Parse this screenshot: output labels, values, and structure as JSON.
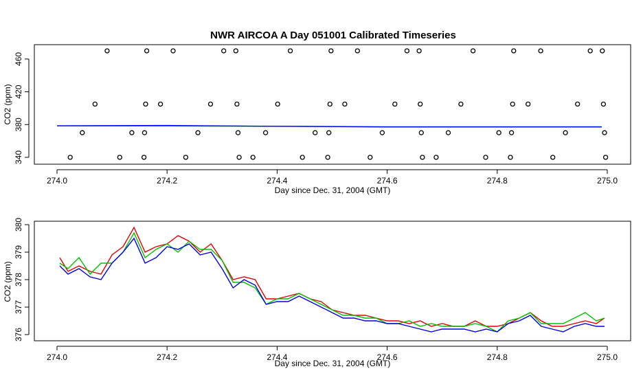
{
  "chart_data": [
    {
      "type": "scatter",
      "title": "NWR AIRCOA A  Day 051001  Calibrated Timeseries",
      "xlabel": "Day since Dec. 31, 2004 (GMT)",
      "ylabel": "CO2 (ppm)",
      "xlim": [
        274.0,
        275.0
      ],
      "ylim": [
        340,
        470
      ],
      "xticks": [
        "274.0",
        "274.2",
        "274.4",
        "274.6",
        "274.8",
        "275.0"
      ],
      "yticks": [
        "340",
        "380",
        "420",
        "460"
      ],
      "points": [
        [
          274.024,
          340
        ],
        [
          274.046,
          370
        ],
        [
          274.069,
          405
        ],
        [
          274.091,
          470
        ],
        [
          274.114,
          340
        ],
        [
          274.136,
          370
        ],
        [
          274.158,
          340
        ],
        [
          274.159,
          370
        ],
        [
          274.161,
          405
        ],
        [
          274.163,
          470
        ],
        [
          274.188,
          405
        ],
        [
          274.211,
          470
        ],
        [
          274.234,
          340
        ],
        [
          274.256,
          370
        ],
        [
          274.279,
          405
        ],
        [
          274.303,
          470
        ],
        [
          274.325,
          470
        ],
        [
          274.327,
          405
        ],
        [
          274.329,
          370
        ],
        [
          274.331,
          340
        ],
        [
          274.356,
          340
        ],
        [
          274.379,
          370
        ],
        [
          274.401,
          405
        ],
        [
          274.424,
          470
        ],
        [
          274.446,
          340
        ],
        [
          274.469,
          370
        ],
        [
          274.492,
          340
        ],
        [
          274.494,
          370
        ],
        [
          274.496,
          405
        ],
        [
          274.498,
          470
        ],
        [
          274.523,
          405
        ],
        [
          274.546,
          470
        ],
        [
          274.569,
          340
        ],
        [
          274.591,
          370
        ],
        [
          274.614,
          405
        ],
        [
          274.636,
          470
        ],
        [
          274.658,
          470
        ],
        [
          274.66,
          405
        ],
        [
          274.662,
          370
        ],
        [
          274.664,
          340
        ],
        [
          274.689,
          340
        ],
        [
          274.711,
          370
        ],
        [
          274.734,
          405
        ],
        [
          274.756,
          470
        ],
        [
          274.779,
          340
        ],
        [
          274.803,
          370
        ],
        [
          274.824,
          340
        ],
        [
          274.826,
          370
        ],
        [
          274.828,
          405
        ],
        [
          274.83,
          470
        ],
        [
          274.856,
          405
        ],
        [
          274.879,
          470
        ],
        [
          274.901,
          340
        ],
        [
          274.924,
          370
        ],
        [
          274.946,
          405
        ],
        [
          274.969,
          470
        ],
        [
          274.991,
          470
        ],
        [
          274.993,
          405
        ],
        [
          274.995,
          370
        ],
        [
          274.997,
          340
        ]
      ],
      "series": [
        {
          "color": "#00c000",
          "x": [
            274.0,
            274.4,
            274.6,
            274.99
          ],
          "values": [
            378.4,
            378.0,
            377.3,
            377.3
          ]
        },
        {
          "color": "#0000ff",
          "x": [
            274.0,
            274.2,
            274.4,
            274.6,
            274.99
          ],
          "values": [
            378.5,
            378.9,
            377.9,
            377.1,
            377.1
          ]
        }
      ]
    },
    {
      "type": "line",
      "xlabel": "Day since Dec. 31, 2004 (GMT)",
      "ylabel": "CO2 (ppm)",
      "xlim": [
        274.0,
        275.0
      ],
      "ylim": [
        376,
        380
      ],
      "xticks": [
        "274.0",
        "274.2",
        "274.4",
        "274.6",
        "274.8",
        "275.0"
      ],
      "yticks": [
        "376",
        "377",
        "378",
        "379",
        "380"
      ],
      "series": [
        {
          "color": "#e00000",
          "x": [
            274.005,
            274.02,
            274.04,
            274.06,
            274.08,
            274.1,
            274.12,
            274.14,
            274.16,
            274.18,
            274.2,
            274.22,
            274.24,
            274.26,
            274.28,
            274.3,
            274.32,
            274.34,
            274.36,
            274.38,
            274.4,
            274.42,
            274.44,
            274.46,
            274.48,
            274.5,
            274.52,
            274.54,
            274.56,
            274.58,
            274.6,
            274.62,
            274.64,
            274.66,
            274.68,
            274.7,
            274.72,
            274.74,
            274.76,
            274.78,
            274.8,
            274.82,
            274.84,
            274.86,
            274.88,
            274.9,
            274.92,
            274.94,
            274.96,
            274.98,
            274.995
          ],
          "values": [
            378.8,
            378.3,
            378.5,
            378.3,
            378.2,
            378.9,
            379.2,
            379.9,
            379.0,
            379.2,
            379.3,
            379.6,
            379.4,
            379.0,
            379.3,
            378.7,
            378.0,
            378.1,
            378.0,
            377.3,
            377.3,
            377.4,
            377.5,
            377.3,
            377.2,
            376.9,
            376.8,
            376.7,
            376.7,
            376.6,
            376.5,
            376.5,
            376.4,
            376.5,
            376.3,
            376.4,
            376.3,
            376.3,
            376.5,
            376.3,
            376.3,
            376.4,
            376.6,
            376.8,
            376.5,
            376.3,
            376.3,
            376.4,
            376.5,
            376.4,
            376.6
          ]
        },
        {
          "color": "#00c000",
          "x": [
            274.005,
            274.02,
            274.04,
            274.06,
            274.08,
            274.1,
            274.12,
            274.14,
            274.16,
            274.18,
            274.2,
            274.22,
            274.24,
            274.26,
            274.28,
            274.3,
            274.32,
            274.34,
            274.36,
            274.38,
            274.4,
            274.42,
            274.44,
            274.46,
            274.48,
            274.5,
            274.52,
            274.54,
            274.56,
            274.58,
            274.6,
            274.62,
            274.64,
            274.66,
            274.68,
            274.7,
            274.72,
            274.74,
            274.76,
            274.78,
            274.8,
            274.82,
            274.84,
            274.86,
            274.88,
            274.9,
            274.92,
            274.94,
            274.96,
            274.98,
            274.995
          ],
          "values": [
            378.6,
            378.4,
            378.8,
            378.2,
            378.6,
            378.6,
            379.0,
            379.7,
            378.8,
            379.1,
            379.3,
            379.0,
            379.4,
            379.1,
            379.1,
            378.7,
            377.9,
            377.9,
            377.7,
            377.1,
            377.3,
            377.3,
            377.5,
            377.3,
            377.1,
            376.9,
            376.7,
            376.7,
            376.6,
            376.6,
            376.4,
            376.4,
            376.5,
            376.3,
            376.4,
            376.3,
            376.3,
            376.3,
            376.4,
            376.3,
            376.1,
            376.5,
            376.6,
            376.8,
            376.4,
            376.4,
            376.4,
            376.6,
            376.8,
            376.5,
            376.6
          ]
        },
        {
          "color": "#0000e0",
          "x": [
            274.005,
            274.02,
            274.04,
            274.06,
            274.08,
            274.1,
            274.12,
            274.14,
            274.16,
            274.18,
            274.2,
            274.22,
            274.24,
            274.26,
            274.28,
            274.3,
            274.32,
            274.34,
            274.36,
            274.38,
            274.4,
            274.42,
            274.44,
            274.46,
            274.48,
            274.5,
            274.52,
            274.54,
            274.56,
            274.58,
            274.6,
            274.62,
            274.64,
            274.66,
            274.68,
            274.7,
            274.72,
            274.74,
            274.76,
            274.78,
            274.8,
            274.82,
            274.84,
            274.86,
            274.88,
            274.9,
            274.92,
            274.94,
            274.96,
            274.98,
            274.995
          ],
          "values": [
            378.5,
            378.2,
            378.4,
            378.1,
            378.0,
            378.6,
            379.0,
            379.5,
            378.6,
            378.8,
            379.2,
            379.1,
            379.3,
            378.9,
            379.0,
            378.4,
            377.7,
            378.0,
            377.8,
            377.1,
            377.2,
            377.2,
            377.4,
            377.2,
            377.0,
            376.8,
            376.6,
            376.6,
            376.5,
            376.5,
            376.4,
            376.4,
            376.3,
            376.2,
            376.1,
            376.2,
            376.2,
            376.2,
            376.1,
            376.2,
            376.1,
            376.4,
            376.5,
            376.7,
            376.3,
            376.2,
            376.1,
            376.3,
            376.4,
            376.3,
            376.3
          ]
        }
      ]
    }
  ]
}
